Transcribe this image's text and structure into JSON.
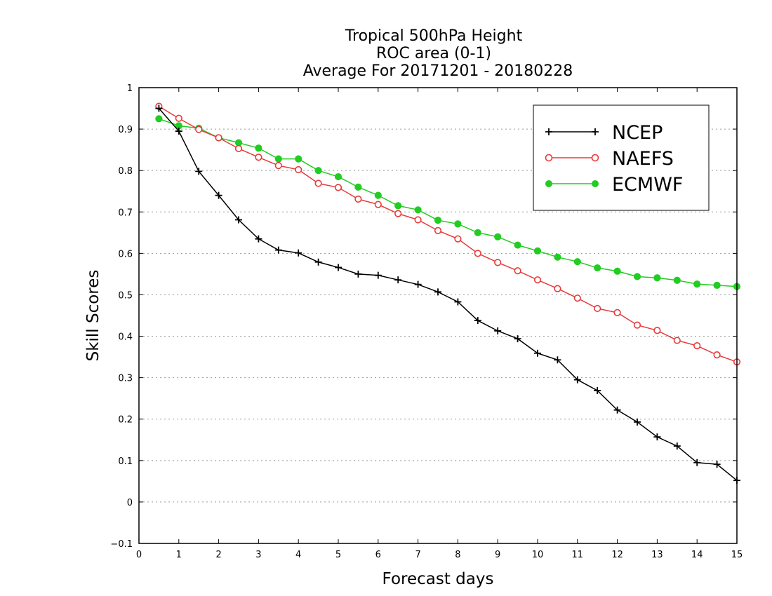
{
  "chart_data": {
    "type": "line",
    "title": [
      "Tropical 500hPa Height",
      "ROC area (0-1)",
      "Average For 20171201 - 20180228"
    ],
    "xlabel": "Forecast days",
    "ylabel": "Skill Scores",
    "xlim": [
      0,
      15
    ],
    "ylim": [
      -0.1,
      1
    ],
    "xticks": [
      "0",
      "1",
      "2",
      "3",
      "4",
      "5",
      "6",
      "7",
      "8",
      "9",
      "10",
      "11",
      "12",
      "13",
      "14",
      "15"
    ],
    "yticks": [
      "−0.1",
      "0",
      "0.1",
      "0.2",
      "0.3",
      "0.4",
      "0.5",
      "0.6",
      "0.7",
      "0.8",
      "0.9",
      "1"
    ],
    "ytick_values": [
      -0.1,
      0,
      0.1,
      0.2,
      0.3,
      0.4,
      0.5,
      0.6,
      0.7,
      0.8,
      0.9,
      1
    ],
    "grid": true,
    "legend_position": "top-right",
    "x": [
      0.5,
      1,
      1.5,
      2,
      2.5,
      3,
      3.5,
      4,
      4.5,
      5,
      5.5,
      6,
      6.5,
      7,
      7.5,
      8,
      8.5,
      9,
      9.5,
      10,
      10.5,
      11,
      11.5,
      12,
      12.5,
      13,
      13.5,
      14,
      14.5,
      15
    ],
    "series": [
      {
        "name": "NCEP",
        "color": "#000000",
        "marker": "plus",
        "values": [
          0.95,
          0.895,
          0.798,
          0.74,
          0.681,
          0.635,
          0.608,
          0.601,
          0.579,
          0.566,
          0.55,
          0.547,
          0.536,
          0.525,
          0.507,
          0.483,
          0.438,
          0.413,
          0.394,
          0.359,
          0.343,
          0.295,
          0.269,
          0.222,
          0.193,
          0.157,
          0.135,
          0.095,
          0.091,
          0.052
        ]
      },
      {
        "name": "NAEFS",
        "color": "#e83a3a",
        "marker": "open-circle",
        "values": [
          0.955,
          0.926,
          0.899,
          0.879,
          0.853,
          0.832,
          0.812,
          0.802,
          0.769,
          0.759,
          0.731,
          0.718,
          0.696,
          0.681,
          0.655,
          0.635,
          0.6,
          0.578,
          0.558,
          0.536,
          0.515,
          0.492,
          0.467,
          0.457,
          0.427,
          0.414,
          0.39,
          0.377,
          0.355,
          0.338
        ]
      },
      {
        "name": "ECMWF",
        "color": "#22cc22",
        "marker": "filled-circle",
        "values": [
          0.925,
          0.908,
          0.902,
          0.879,
          0.867,
          0.854,
          0.828,
          0.828,
          0.8,
          0.785,
          0.76,
          0.74,
          0.715,
          0.705,
          0.68,
          0.671,
          0.65,
          0.64,
          0.62,
          0.606,
          0.591,
          0.58,
          0.565,
          0.557,
          0.544,
          0.541,
          0.535,
          0.526,
          0.523,
          0.52
        ]
      }
    ]
  }
}
